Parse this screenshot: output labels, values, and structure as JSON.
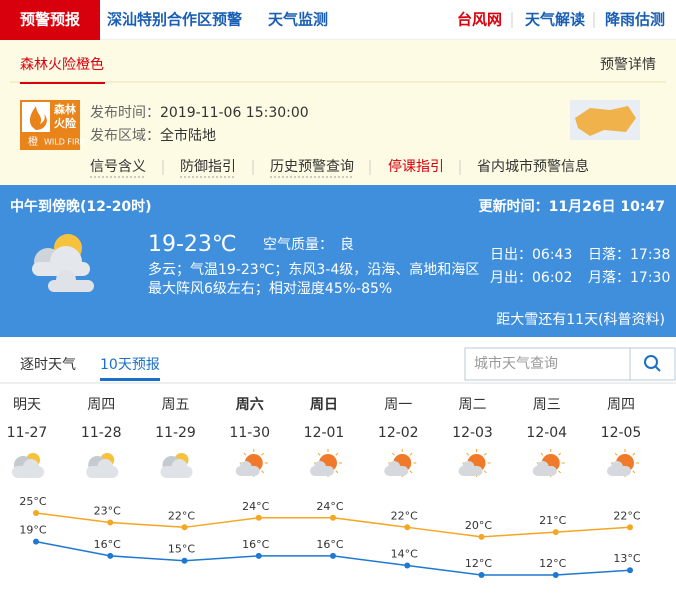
{
  "nav": {
    "active": "预警预报",
    "links": [
      "深汕特别合作区预警",
      "天气监测"
    ],
    "right_links": [
      "台风网",
      "天气解读",
      "降雨估测"
    ]
  },
  "alert": {
    "tab": "森林火险橙色",
    "detail_link": "预警详情",
    "icon_text": [
      "森林",
      "火险"
    ],
    "icon_level": "橙",
    "icon_label": "WILD FIRE",
    "issue_time_label": "发布时间：",
    "issue_time": "2019-11-06 15:30:00",
    "area_label": "发布区域：",
    "area": "全市陆地",
    "links": [
      "信号含义",
      "防御指引",
      "历史预警查询",
      "停课指引",
      "省内城市预警信息"
    ]
  },
  "current": {
    "period": "中午到傍晚(12-20时)",
    "update_label": "更新时间：",
    "update_time": "11月26日 10:47",
    "temp": "19-23℃",
    "aqi_label": "空气质量：",
    "aqi": "良",
    "desc": [
      "多云；气温19-23℃；东风3-4级，沿海、高地和海区",
      "最大阵风6级左右；相对湿度45%-85%"
    ],
    "sun": [
      {
        "label": "日出：",
        "time": "06:43"
      },
      {
        "label": "日落：",
        "time": "17:38"
      },
      {
        "label": "月出：",
        "time": "06:02"
      },
      {
        "label": "月落：",
        "time": "17:30"
      }
    ],
    "countdown": "距大雪还有11天(科普资料)"
  },
  "tabs": [
    "逐时天气",
    "10天预报"
  ],
  "search_placeholder": "城市天气查询",
  "forecast": {
    "days": [
      "明天",
      "周四",
      "周五",
      "周六",
      "周日",
      "周一",
      "周二",
      "周三",
      "周四"
    ],
    "dates": [
      "11-27",
      "11-28",
      "11-29",
      "11-30",
      "12-01",
      "12-02",
      "12-03",
      "12-04",
      "12-05"
    ],
    "highs": [
      25,
      23,
      22,
      24,
      24,
      22,
      20,
      21,
      22
    ],
    "high_labels": [
      "25°C",
      "23°C",
      "22°C",
      "24°C",
      "24°C",
      "22°C",
      "20°C",
      "21°C",
      "22°C"
    ],
    "lows": [
      19,
      16,
      15,
      16,
      16,
      14,
      12,
      12,
      13
    ],
    "low_labels": [
      "19°C",
      "16°C",
      "15°C",
      "16°C",
      "16°C",
      "14°C",
      "12°C",
      "12°C",
      "13°C"
    ],
    "high_color": "#f5a623",
    "low_color": "#1f78d1"
  }
}
